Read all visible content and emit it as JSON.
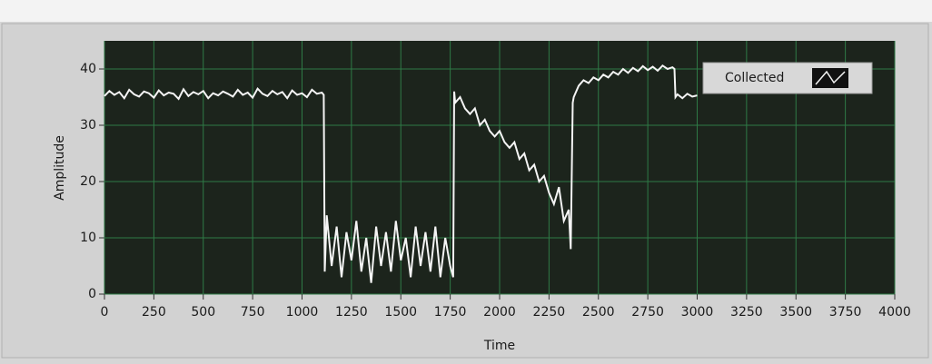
{
  "chart_data": {
    "type": "line",
    "xlabel": "Time",
    "ylabel": "Amplitude",
    "xlim": [
      0,
      4000
    ],
    "xticks": [
      0,
      250,
      500,
      750,
      1000,
      1250,
      1500,
      1750,
      2000,
      2250,
      2500,
      2750,
      3000,
      3250,
      3500,
      3750,
      4000
    ],
    "ylim": [
      0,
      45
    ],
    "yticks": [
      0,
      10,
      20,
      30,
      40
    ],
    "grid": true,
    "legend": "upper right",
    "series": [
      {
        "name": "Collected",
        "color": "#f4f4f4",
        "x": [
          0,
          25,
          50,
          75,
          100,
          125,
          150,
          175,
          200,
          225,
          250,
          275,
          300,
          325,
          350,
          375,
          400,
          425,
          450,
          475,
          500,
          525,
          550,
          575,
          600,
          625,
          650,
          675,
          700,
          725,
          750,
          775,
          800,
          825,
          850,
          875,
          900,
          925,
          950,
          975,
          1000,
          1025,
          1050,
          1075,
          1100,
          1110,
          1115,
          1125,
          1150,
          1175,
          1200,
          1225,
          1250,
          1275,
          1300,
          1325,
          1350,
          1375,
          1400,
          1425,
          1450,
          1475,
          1500,
          1525,
          1550,
          1575,
          1600,
          1625,
          1650,
          1675,
          1700,
          1725,
          1750,
          1765,
          1770,
          1775,
          1800,
          1825,
          1850,
          1875,
          1900,
          1925,
          1950,
          1975,
          2000,
          2025,
          2050,
          2075,
          2100,
          2125,
          2150,
          2175,
          2200,
          2225,
          2250,
          2275,
          2300,
          2325,
          2350,
          2360,
          2370,
          2375,
          2400,
          2425,
          2450,
          2475,
          2500,
          2525,
          2550,
          2575,
          2600,
          2625,
          2650,
          2675,
          2700,
          2725,
          2750,
          2775,
          2800,
          2825,
          2850,
          2875,
          2885,
          2890,
          2900,
          2925,
          2950,
          2975,
          3000
        ],
        "values": [
          35.2,
          36.1,
          35.4,
          35.9,
          34.8,
          36.3,
          35.5,
          35.1,
          36.0,
          35.7,
          34.9,
          36.2,
          35.3,
          35.8,
          35.6,
          34.7,
          36.4,
          35.2,
          35.9,
          35.5,
          36.1,
          34.8,
          35.7,
          35.3,
          36.0,
          35.6,
          35.1,
          36.3,
          35.4,
          35.8,
          34.9,
          36.5,
          35.6,
          35.2,
          36.1,
          35.5,
          35.9,
          34.8,
          36.2,
          35.4,
          35.7,
          35.0,
          36.3,
          35.6,
          35.8,
          35.4,
          4,
          14,
          5,
          12,
          3,
          11,
          6,
          13,
          4,
          10,
          2,
          12,
          5,
          11,
          4,
          13,
          6,
          10,
          3,
          12,
          5,
          11,
          4,
          12,
          3,
          10,
          5,
          3,
          36,
          34,
          35,
          33,
          32,
          33,
          30,
          31,
          29,
          28,
          29,
          27,
          26,
          27,
          24,
          25,
          22,
          23,
          20,
          21,
          18,
          16,
          19,
          13,
          15,
          8,
          34,
          35,
          37,
          38,
          37.5,
          38.5,
          38,
          39,
          38.5,
          39.5,
          39,
          40,
          39.3,
          40.2,
          39.6,
          40.5,
          39.8,
          40.4,
          39.7,
          40.6,
          40,
          40.3,
          40,
          35,
          35.5,
          34.8,
          35.6,
          35.1,
          35.3
        ]
      }
    ]
  }
}
